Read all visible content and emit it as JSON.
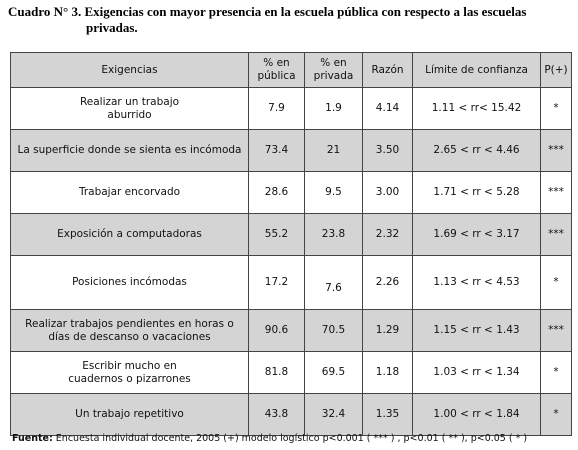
{
  "title": {
    "line1": "Cuadro N° 3. Exigencias con mayor presencia en la escuela pública con respecto a las escuelas",
    "line2": "privadas."
  },
  "table": {
    "headers": [
      "Exigencias",
      "% en\npública",
      "% en\nprivada",
      "Razón",
      "Límite de confianza",
      "P(+)"
    ],
    "rows": [
      [
        "Realizar un trabajo\naburrido",
        "7.9",
        "1.9",
        "4.14",
        "1.11 < rr< 15.42",
        "*"
      ],
      [
        "La superficie donde se sienta es incómoda",
        "73.4",
        "21",
        "3.50",
        "2.65 < rr < 4.46",
        "***"
      ],
      [
        "Trabajar encorvado",
        "28.6",
        "9.5",
        "3.00",
        "1.71 < rr < 5.28",
        "***"
      ],
      [
        "Exposición a computadoras",
        "55.2",
        "23.8",
        "2.32",
        "1.69 < rr < 3.17",
        "***"
      ],
      [
        "Posiciones incómodas",
        "17.2",
        "7.6",
        "2.26",
        "1.13 < rr < 4.53",
        "*"
      ],
      [
        "Realizar trabajos pendientes en horas o\ndías de descanso o vacaciones",
        "90.6",
        "70.5",
        "1.29",
        "1.15 < rr < 1.43",
        "***"
      ],
      [
        "Escribir mucho en\ncuadernos o pizarrones",
        "81.8",
        "69.5",
        "1.18",
        "1.03 < rr < 1.34",
        "*"
      ],
      [
        "Un trabajo repetitivo",
        "43.8",
        "32.4",
        "1.35",
        "1.00 < rr < 1.84",
        "*"
      ]
    ]
  },
  "footer": {
    "label": "Fuente:",
    "text": " Encuesta individual docente, 2005 (+) modelo logístico p<0.001 ( *** ) , p<0.01 ( ** ), p<0.05 ( * )"
  }
}
